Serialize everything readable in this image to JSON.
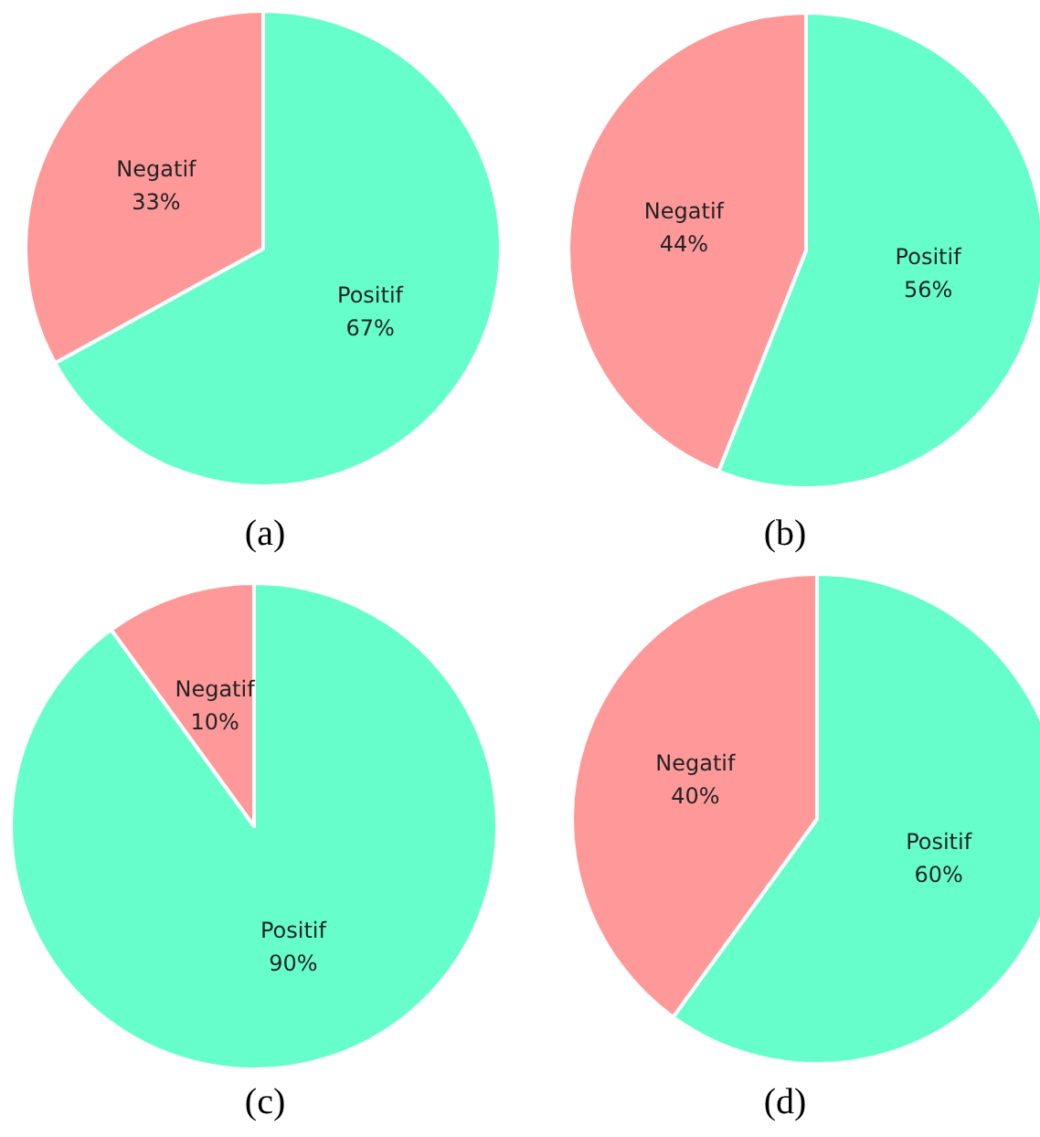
{
  "chart_data": [
    {
      "type": "pie",
      "title": "(a)",
      "categories": [
        "Positif",
        "Negatif"
      ],
      "values": [
        67,
        33
      ],
      "value_labels": [
        "67%",
        "33%"
      ],
      "colors": [
        "#66ffcc",
        "#ff9999"
      ]
    },
    {
      "type": "pie",
      "title": "(b)",
      "categories": [
        "Positif",
        "Negatif"
      ],
      "values": [
        56,
        44
      ],
      "value_labels": [
        "56%",
        "44%"
      ],
      "colors": [
        "#66ffcc",
        "#ff9999"
      ]
    },
    {
      "type": "pie",
      "title": "(c)",
      "categories": [
        "Positif",
        "Negatif"
      ],
      "values": [
        90,
        10
      ],
      "value_labels": [
        "90%",
        "10%"
      ],
      "colors": [
        "#66ffcc",
        "#ff9999"
      ]
    },
    {
      "type": "pie",
      "title": "(d)",
      "categories": [
        "Positif",
        "Negatif"
      ],
      "values": [
        60,
        40
      ],
      "value_labels": [
        "60%",
        "40%"
      ],
      "colors": [
        "#66ffcc",
        "#ff9999"
      ]
    }
  ]
}
